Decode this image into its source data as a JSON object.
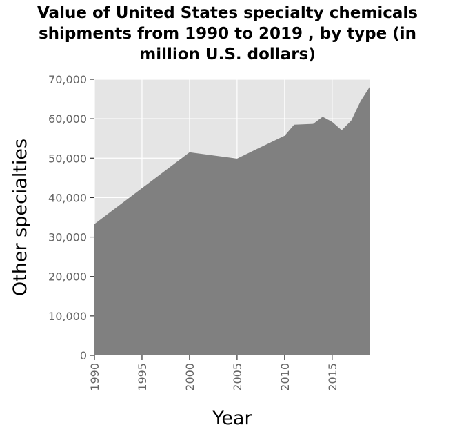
{
  "chart_data": {
    "type": "area",
    "title_lines": [
      "Value of United States specialty chemicals",
      "shipments from 1990 to 2019 , by type (in",
      "million U.S. dollars)"
    ],
    "xlabel": "Year",
    "ylabel": "Other specialties",
    "xlim": [
      1990,
      2019
    ],
    "ylim": [
      0,
      70000
    ],
    "x_ticks": [
      1990,
      1995,
      2000,
      2005,
      2010,
      2015
    ],
    "y_ticks": [
      0,
      10000,
      20000,
      30000,
      40000,
      50000,
      60000,
      70000
    ],
    "y_tick_labels": [
      "0",
      "10,000",
      "20,000",
      "30,000",
      "40,000",
      "50,000",
      "60,000",
      "70,000"
    ],
    "grid": true,
    "series": [
      {
        "x": [
          1990,
          2000,
          2005,
          2010,
          2011,
          2013,
          2014,
          2015,
          2016,
          2017,
          2018,
          2019
        ],
        "values": [
          33300,
          51500,
          49900,
          55700,
          58500,
          58700,
          60500,
          59200,
          57100,
          59500,
          64500,
          68300
        ]
      }
    ],
    "colors": {
      "area": "#808080",
      "plot_background": "#e5e5e5",
      "grid": "#ffffff"
    }
  }
}
